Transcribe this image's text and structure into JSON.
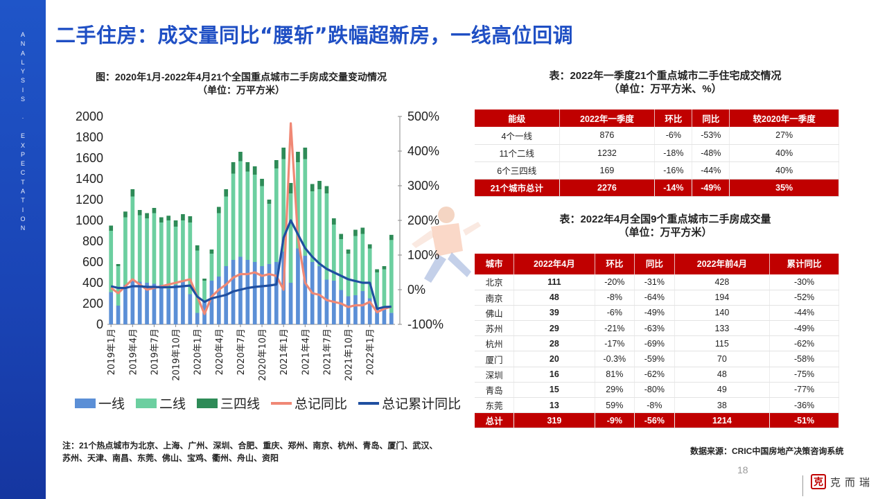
{
  "sidebar": {
    "text": "ANALYSIS · EXPECTATION"
  },
  "page": {
    "title": "二手住房：成交量同比“腰斩”跌幅超新房，一线高位回调",
    "page_number": "18"
  },
  "chart": {
    "title_line1": "图：2020年1月-2022年4月21个全国重点城市二手房成交量变动情况",
    "title_line2": "（单位：万平方米）"
  },
  "chart_data": {
    "type": "bar",
    "stacked": true,
    "x": [
      "2019年1月",
      "2019年2月",
      "2019年3月",
      "2019年4月",
      "2019年5月",
      "2019年6月",
      "2019年7月",
      "2019年8月",
      "2019年9月",
      "2019年10月",
      "2019年11月",
      "2019年12月",
      "2020年1月",
      "2020年2月",
      "2020年3月",
      "2020年4月",
      "2020年5月",
      "2020年6月",
      "2020年7月",
      "2020年8月",
      "2020年9月",
      "2020年10月",
      "2020年11月",
      "2020年12月",
      "2021年1月",
      "2021年2月",
      "2021年3月",
      "2021年4月",
      "2021年5月",
      "2021年6月",
      "2021年7月",
      "2021年8月",
      "2021年9月",
      "2021年10月",
      "2021年11月",
      "2021年12月",
      "2022年1月",
      "2022年2月",
      "2022年3月",
      "2022年4月"
    ],
    "tick_labels": [
      "2019年1月",
      "2019年4月",
      "2019年7月",
      "2019年10月",
      "2020年1月",
      "2020年4月",
      "2020年7月",
      "2020年10月",
      "2021年1月",
      "2021年4月",
      "2021年7月",
      "2021年10月",
      "2022年1月"
    ],
    "series": [
      {
        "name": "一线",
        "kind": "bar",
        "color": "#5b8fd6",
        "axis": "left",
        "values": [
          310,
          180,
          380,
          420,
          410,
          400,
          390,
          380,
          340,
          380,
          410,
          290,
          110,
          230,
          420,
          460,
          560,
          620,
          650,
          620,
          600,
          560,
          580,
          600,
          700,
          400,
          730,
          660,
          600,
          560,
          430,
          420,
          330,
          270,
          280,
          320,
          250,
          160,
          170,
          111
        ]
      },
      {
        "name": "二线",
        "kind": "bar",
        "color": "#6ccfa0",
        "axis": "left",
        "values": [
          590,
          380,
          650,
          810,
          640,
          620,
          680,
          600,
          660,
          560,
          590,
          690,
          600,
          190,
          260,
          610,
          670,
          830,
          920,
          850,
          840,
          770,
          580,
          900,
          890,
          860,
          830,
          930,
          680,
          740,
          830,
          540,
          490,
          410,
          570,
          550,
          480,
          340,
          360,
          700
        ]
      },
      {
        "name": "三四线",
        "kind": "bar",
        "color": "#2e8b57",
        "axis": "left",
        "values": [
          50,
          20,
          55,
          70,
          50,
          50,
          50,
          50,
          45,
          60,
          60,
          60,
          50,
          20,
          40,
          60,
          70,
          110,
          90,
          90,
          80,
          70,
          40,
          80,
          110,
          100,
          100,
          110,
          70,
          80,
          70,
          60,
          50,
          40,
          60,
          60,
          40,
          30,
          30,
          50
        ]
      },
      {
        "name": "总记同比",
        "kind": "line",
        "color": "#f08875",
        "axis": "right",
        "values": [
          5,
          -10,
          10,
          30,
          15,
          0,
          5,
          10,
          15,
          20,
          25,
          30,
          -20,
          -70,
          -20,
          0,
          15,
          35,
          45,
          45,
          50,
          40,
          45,
          40,
          0,
          480,
          150,
          20,
          -10,
          -15,
          -30,
          -35,
          -40,
          -50,
          -45,
          -45,
          -35,
          -65,
          -55,
          -49
        ]
      },
      {
        "name": "总记累计同比",
        "kind": "line",
        "color": "#1f4fa0",
        "axis": "right",
        "values": [
          10,
          5,
          5,
          10,
          10,
          8,
          8,
          7,
          7,
          8,
          10,
          12,
          -20,
          -35,
          -25,
          -20,
          -15,
          -5,
          0,
          5,
          8,
          10,
          12,
          15,
          150,
          200,
          160,
          120,
          95,
          75,
          60,
          50,
          40,
          30,
          25,
          20,
          20,
          -55,
          -50,
          -49
        ]
      }
    ],
    "y_left": {
      "min": 0,
      "max": 2000,
      "ticks": [
        "0",
        "200",
        "400",
        "600",
        "800",
        "1000",
        "1200",
        "1400",
        "1600",
        "1800",
        "2000"
      ]
    },
    "y_right": {
      "min": -100,
      "max": 500,
      "ticks": [
        "-100%",
        "0%",
        "100%",
        "200%",
        "300%",
        "400%",
        "500%"
      ]
    },
    "legend_position": "bottom",
    "grid": false
  },
  "table1": {
    "title_line1": "表：2022年一季度21个重点城市二手住宅成交情况",
    "title_line2": "（单位：万平方米、%）",
    "headers": [
      "能级",
      "2022年一季度",
      "环比",
      "同比",
      "较2020年一季度"
    ],
    "rows": [
      [
        "4个一线",
        "876",
        "-6%",
        "-53%",
        "27%"
      ],
      [
        "11个二线",
        "1232",
        "-18%",
        "-48%",
        "40%"
      ],
      [
        "6个三四线",
        "169",
        "-16%",
        "-44%",
        "40%"
      ]
    ],
    "total": [
      "21个城市总计",
      "2276",
      "-14%",
      "-49%",
      "35%"
    ]
  },
  "table2": {
    "title_line1": "表：2022年4月全国9个重点城市二手房成交量",
    "title_line2": "（单位：万平方米）",
    "headers": [
      "城市",
      "2022年4月",
      "环比",
      "同比",
      "2022年前4月",
      "累计同比"
    ],
    "rows": [
      [
        "北京",
        "111",
        "-20%",
        "-31%",
        "428",
        "-30%"
      ],
      [
        "南京",
        "48",
        "-8%",
        "-64%",
        "194",
        "-52%"
      ],
      [
        "佛山",
        "39",
        "-6%",
        "-49%",
        "140",
        "-44%"
      ],
      [
        "苏州",
        "29",
        "-21%",
        "-63%",
        "133",
        "-49%"
      ],
      [
        "杭州",
        "28",
        "-17%",
        "-69%",
        "115",
        "-62%"
      ],
      [
        "厦门",
        "20",
        "-0.3%",
        "-59%",
        "70",
        "-58%"
      ],
      [
        "深圳",
        "16",
        "81%",
        "-62%",
        "48",
        "-75%"
      ],
      [
        "青岛",
        "15",
        "29%",
        "-80%",
        "49",
        "-77%"
      ],
      [
        "东莞",
        "13",
        "59%",
        "-8%",
        "38",
        "-36%"
      ]
    ],
    "total": [
      "总计",
      "319",
      "-9%",
      "-56%",
      "1214",
      "-51%"
    ]
  },
  "note": {
    "line1": "注：21个热点城市为北京、上海、广州、深圳、合肥、重庆、郑州、南京、杭州、青岛、厦门、武汉、",
    "line2": "苏州、天津、南昌、东莞、佛山、宝鸡、衢州、舟山、资阳"
  },
  "source": "数据来源：CRIC中国房地产决策咨询系统",
  "logo": {
    "seal": "克",
    "text": "克而瑞"
  },
  "icons": {
    "logo_seal": "seal-icon",
    "decoration": "runner-illustration"
  }
}
